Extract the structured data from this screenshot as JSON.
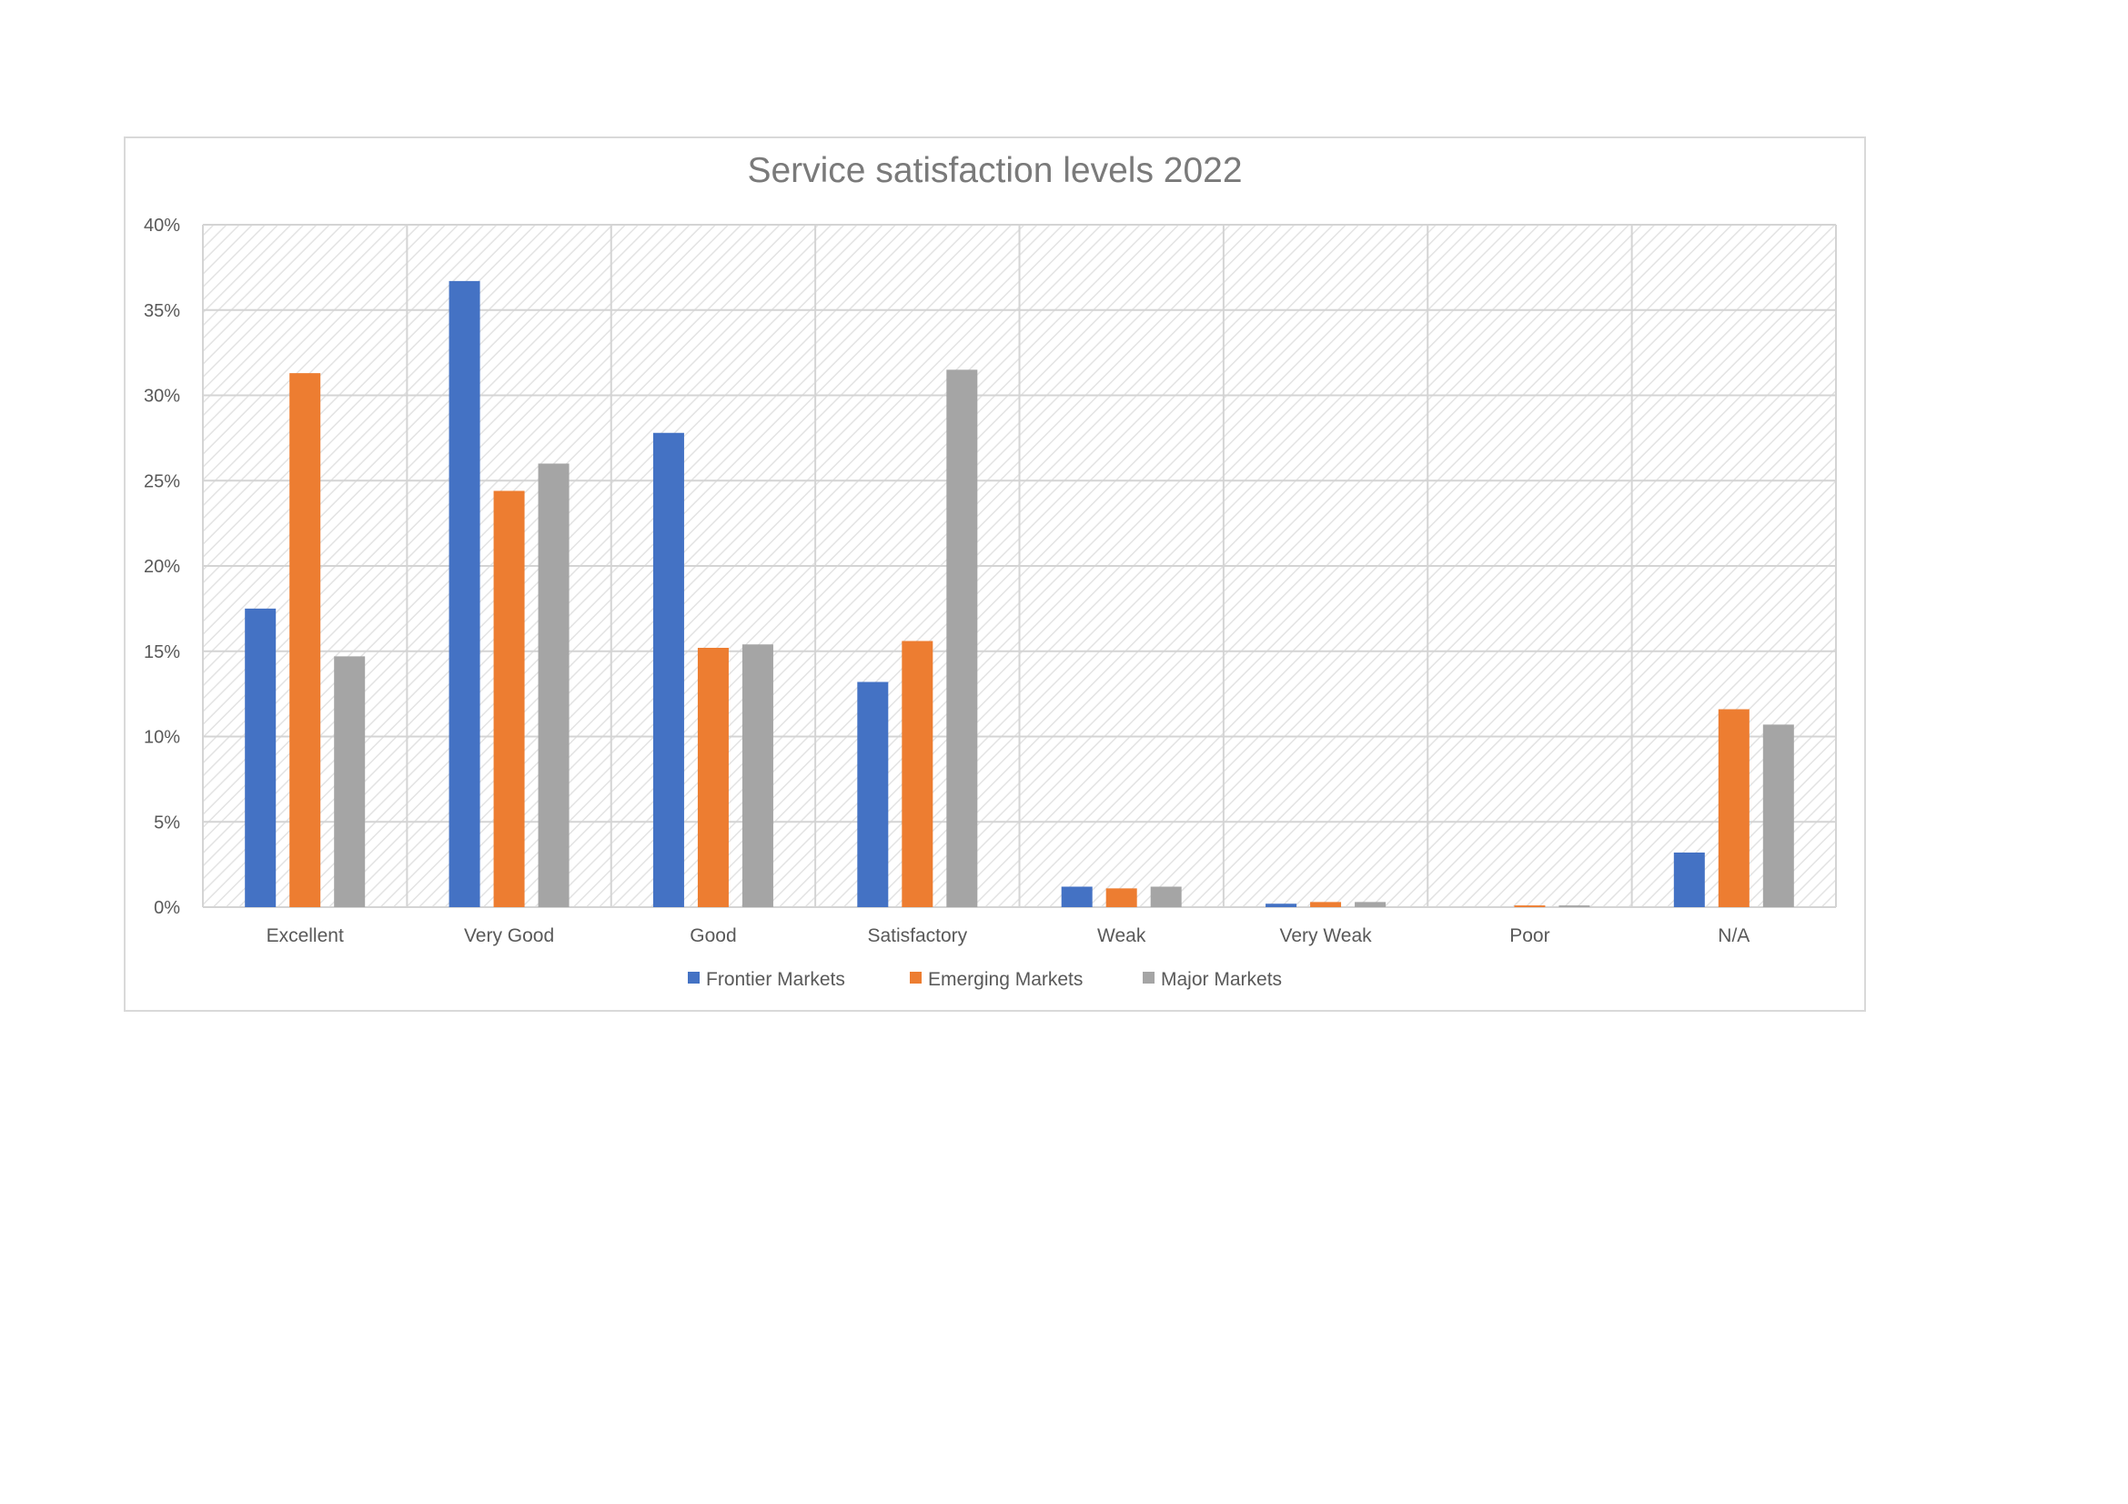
{
  "chart_data": {
    "type": "bar",
    "title": "Service satisfaction levels 2022",
    "xlabel": "",
    "ylabel": "",
    "categories": [
      "Excellent",
      "Very Good",
      "Good",
      "Satisfactory",
      "Weak",
      "Very Weak",
      "Poor",
      "N/A"
    ],
    "series": [
      {
        "name": "Frontier Markets",
        "color": "#4472c4",
        "values": [
          17.5,
          36.7,
          27.8,
          13.2,
          1.2,
          0.2,
          0,
          3.2
        ]
      },
      {
        "name": "Emerging Markets",
        "color": "#ed7d31",
        "values": [
          31.3,
          24.4,
          15.2,
          15.6,
          1.1,
          0.3,
          0.1,
          11.6
        ]
      },
      {
        "name": "Major Markets",
        "color": "#a5a5a5",
        "values": [
          14.7,
          26.0,
          15.4,
          31.5,
          1.2,
          0.3,
          0.1,
          10.7
        ]
      }
    ],
    "ylim": [
      0,
      40
    ],
    "yticks": [
      0,
      5,
      10,
      15,
      20,
      25,
      30,
      35,
      40
    ],
    "ytick_labels": [
      "0%",
      "5%",
      "10%",
      "15%",
      "20%",
      "25%",
      "30%",
      "35%",
      "40%"
    ],
    "grid": true,
    "legend_position": "bottom"
  }
}
